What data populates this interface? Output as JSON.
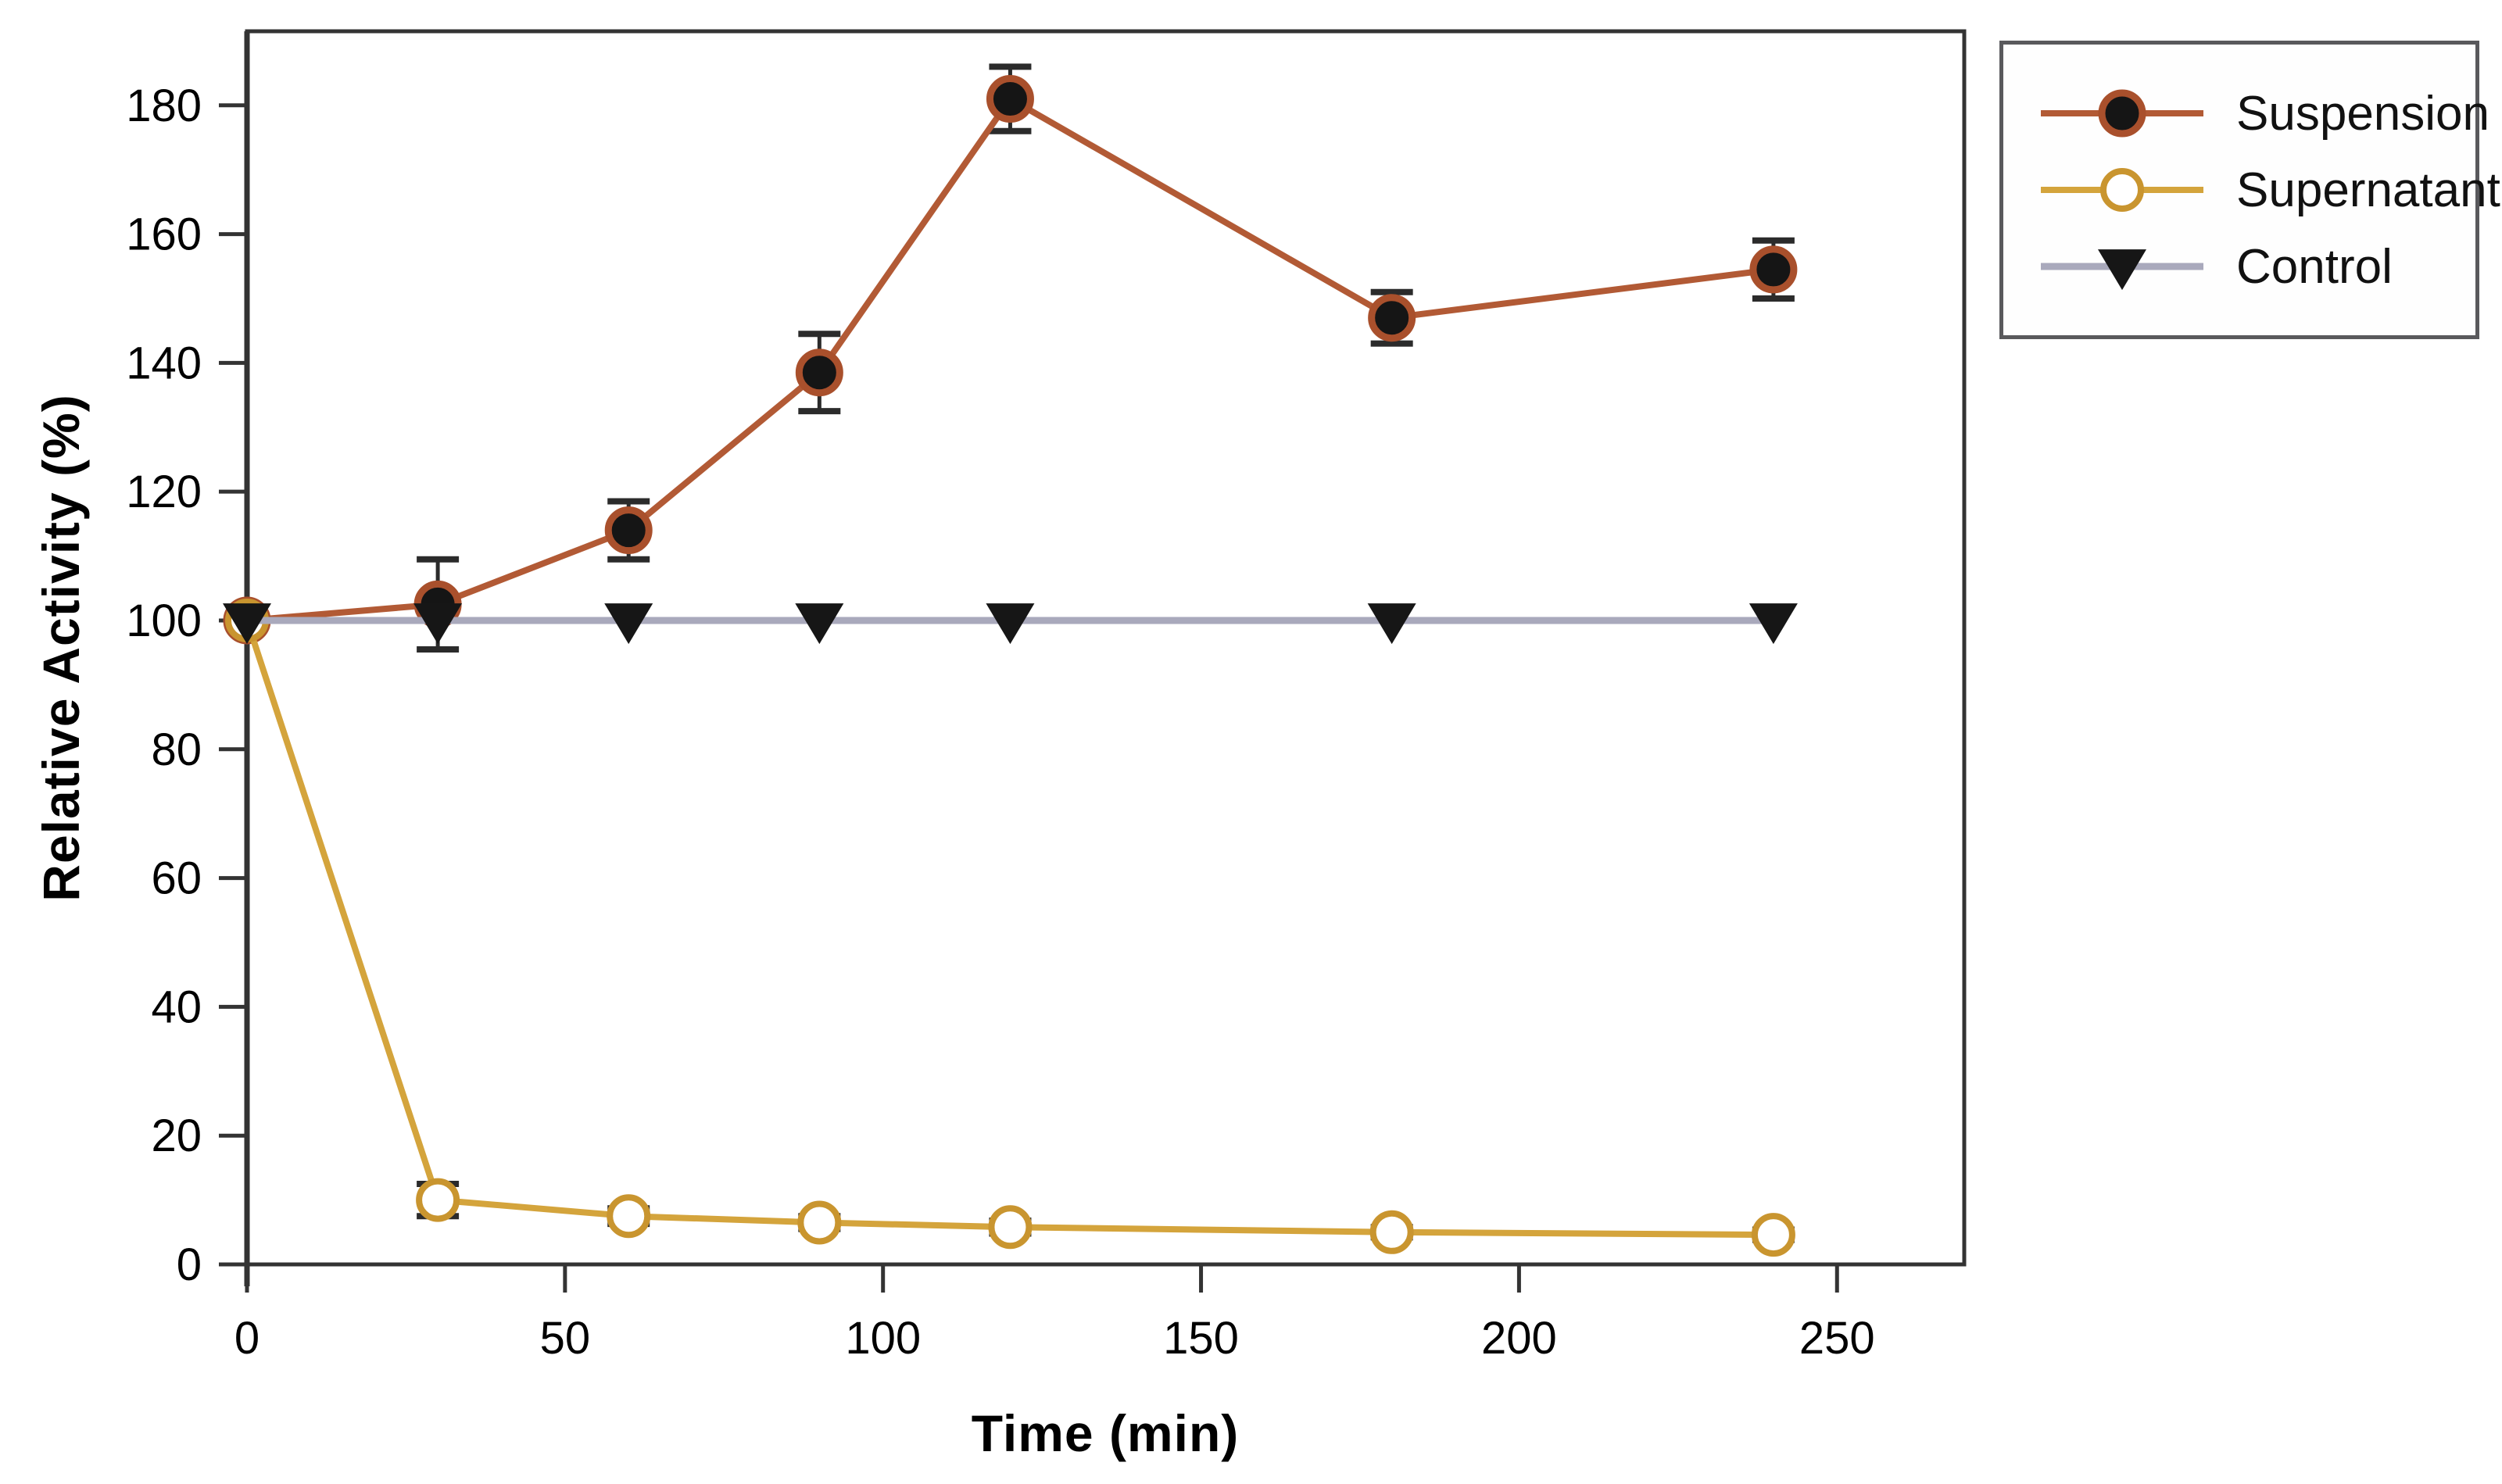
{
  "axes": {
    "x_title": "Time (min)",
    "y_title": "Relative Activity (%)"
  },
  "legend": {
    "items": [
      {
        "label": "Suspension",
        "series": "Suspension"
      },
      {
        "label": "Supernatant",
        "series": "Supernatant"
      },
      {
        "label": "Control",
        "series": "Control"
      }
    ]
  },
  "colors": {
    "suspension_line": "#b25a35",
    "suspension_marker_fill": "#151515",
    "suspension_marker_edge": "#a9502c",
    "supernatant_line": "#d4a43c",
    "supernatant_marker_fill": "#ffffff",
    "supernatant_marker_edge": "#c9952f",
    "control_line": "#a9a9bc",
    "control_marker_fill": "#161616",
    "error_bar": "#2b2b2b",
    "frame": "#333333",
    "tick_label": "#000000"
  },
  "chart_data": {
    "type": "line",
    "title": "",
    "xlabel": "Time (min)",
    "ylabel": "Relative Activity (%)",
    "x": [
      0,
      30,
      60,
      90,
      120,
      180,
      240
    ],
    "series": [
      {
        "name": "Suspension",
        "marker": "filled-circle",
        "values": [
          100,
          102.5,
          114,
          138.5,
          181,
          147,
          154.5
        ],
        "errors": [
          0,
          7,
          4.5,
          6,
          5,
          4,
          4.5
        ]
      },
      {
        "name": "Supernatant",
        "marker": "open-circle",
        "values": [
          100,
          10,
          7.5,
          6.5,
          5.8,
          5,
          4.6
        ],
        "errors": [
          0,
          2.5,
          1.2,
          1,
          1,
          0.8,
          0.8
        ]
      },
      {
        "name": "Control",
        "marker": "filled-triangle-down",
        "values": [
          100,
          100,
          100,
          100,
          100,
          100,
          100
        ],
        "errors": [
          0,
          0,
          0,
          0,
          0,
          0,
          0
        ]
      }
    ],
    "xlim": [
      0,
      270
    ],
    "ylim": [
      0,
      191.5
    ],
    "x_ticks": [
      0,
      50,
      100,
      150,
      200,
      250
    ],
    "y_ticks": [
      0,
      20,
      40,
      60,
      80,
      100,
      120,
      140,
      160,
      180
    ],
    "grid": false,
    "legend_position": "outside-top-right"
  }
}
